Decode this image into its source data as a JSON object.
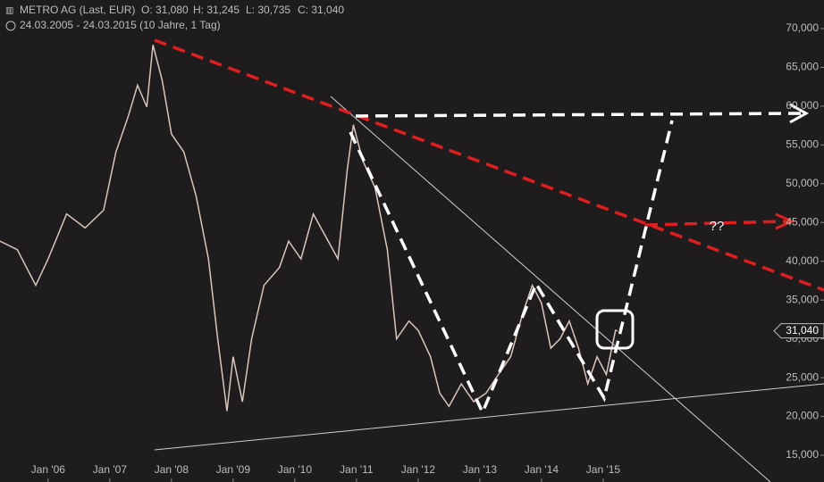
{
  "chart_data": {
    "type": "line",
    "title": "METRO AG (Last, EUR)",
    "ohlc_labels": [
      "O: 31,080",
      "H: 31,245",
      "L: 30,735",
      "C: 31,040"
    ],
    "subtitle": "24.03.2005 - 24.03.2015 (10 Jahre, 1 Tag)",
    "annotation": "??",
    "price_tag": {
      "value": 31.04,
      "label": "31,040"
    },
    "x": [
      2005.22,
      2005.5,
      2005.8,
      2006.0,
      2006.3,
      2006.6,
      2006.9,
      2007.1,
      2007.3,
      2007.45,
      2007.6,
      2007.7,
      2007.85,
      2008.0,
      2008.2,
      2008.4,
      2008.6,
      2008.75,
      2008.9,
      2009.0,
      2009.15,
      2009.3,
      2009.5,
      2009.75,
      2009.9,
      2010.1,
      2010.3,
      2010.5,
      2010.7,
      2010.85,
      2010.95,
      2011.1,
      2011.3,
      2011.5,
      2011.65,
      2011.85,
      2012.0,
      2012.2,
      2012.35,
      2012.5,
      2012.7,
      2012.9,
      2013.1,
      2013.3,
      2013.5,
      2013.7,
      2013.85,
      2014.0,
      2014.15,
      2014.3,
      2014.45,
      2014.6,
      2014.75,
      2014.9,
      2015.05,
      2015.2,
      2015.23
    ],
    "series": [
      {
        "name": "METRO AG",
        "color": "#d9c6bd",
        "values": [
          42.6,
          41.5,
          36.9,
          40.3,
          46.1,
          44.3,
          46.6,
          54.1,
          58.7,
          62.7,
          59.9,
          67.9,
          63.3,
          56.4,
          54.1,
          48.4,
          40.3,
          30.0,
          20.7,
          27.7,
          21.9,
          30.0,
          36.9,
          39.2,
          42.6,
          40.3,
          46.1,
          43.2,
          40.3,
          51.8,
          57.6,
          53.0,
          49.5,
          41.5,
          30.0,
          32.3,
          31.1,
          27.7,
          23.0,
          21.3,
          24.2,
          21.9,
          23.0,
          25.4,
          27.7,
          33.4,
          36.9,
          34.6,
          28.8,
          30.0,
          32.3,
          28.8,
          24.2,
          27.7,
          25.4,
          31.1,
          31.04
        ]
      }
    ],
    "xlim": [
      2005.22,
      2018.58
    ],
    "xticks": [
      {
        "value": 2006,
        "label": "Jan '06"
      },
      {
        "value": 2007,
        "label": "Jan '07"
      },
      {
        "value": 2008,
        "label": "Jan '08"
      },
      {
        "value": 2009,
        "label": "Jan '09"
      },
      {
        "value": 2010,
        "label": "Jan '10"
      },
      {
        "value": 2011,
        "label": "Jan '11"
      },
      {
        "value": 2012,
        "label": "Jan '12"
      },
      {
        "value": 2013,
        "label": "Jan '13"
      },
      {
        "value": 2014,
        "label": "Jan '14"
      },
      {
        "value": 2015,
        "label": "Jan '15"
      }
    ],
    "ylim": [
      11.55,
      73.68
    ],
    "yticks": [
      {
        "value": 15,
        "label": "15,000"
      },
      {
        "value": 20,
        "label": "20,000"
      },
      {
        "value": 25,
        "label": "25,000"
      },
      {
        "value": 30,
        "label": "30,000"
      },
      {
        "value": 35,
        "label": "35,000"
      },
      {
        "value": 40,
        "label": "40,000"
      },
      {
        "value": 45,
        "label": "45,000"
      },
      {
        "value": 50,
        "label": "50,000"
      },
      {
        "value": 55,
        "label": "55,000"
      },
      {
        "value": 60,
        "label": "60,000"
      },
      {
        "value": 65,
        "label": "65,000"
      },
      {
        "value": 70,
        "label": "70,000"
      }
    ]
  }
}
